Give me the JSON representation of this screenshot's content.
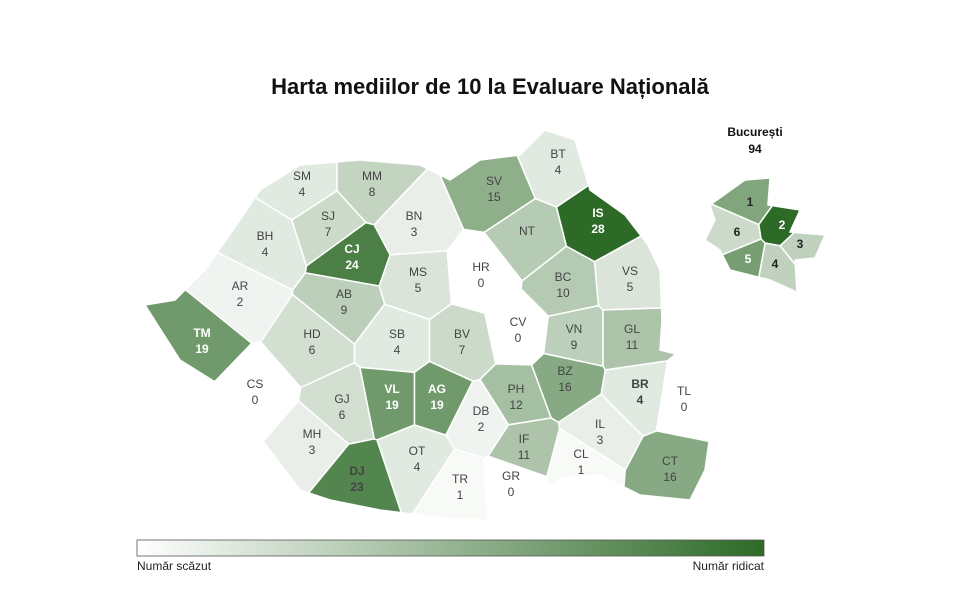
{
  "title": "Harta mediilor de 10 la Evaluare Națională",
  "scale_colors": [
    "#ffffff",
    "#2d6a27"
  ],
  "regions": [
    {
      "code": "SM",
      "value": 4
    },
    {
      "code": "MM",
      "value": 8
    },
    {
      "code": "BT",
      "value": 4
    },
    {
      "code": "SV",
      "value": 15
    },
    {
      "code": "IS",
      "value": 28
    },
    {
      "code": "SJ",
      "value": 7
    },
    {
      "code": "BN",
      "value": 3
    },
    {
      "code": "CJ",
      "value": 24
    },
    {
      "code": "BH",
      "value": 4
    },
    {
      "code": "NT",
      "value": null
    },
    {
      "code": "AR",
      "value": 2
    },
    {
      "code": "MS",
      "value": 5
    },
    {
      "code": "HR",
      "value": 0
    },
    {
      "code": "BC",
      "value": 10
    },
    {
      "code": "VS",
      "value": 5
    },
    {
      "code": "AB",
      "value": 9
    },
    {
      "code": "TM",
      "value": 19
    },
    {
      "code": "HD",
      "value": 6
    },
    {
      "code": "SB",
      "value": 4
    },
    {
      "code": "BV",
      "value": 7
    },
    {
      "code": "CV",
      "value": 0
    },
    {
      "code": "VN",
      "value": 9
    },
    {
      "code": "GL",
      "value": 11
    },
    {
      "code": "CS",
      "value": 0
    },
    {
      "code": "VL",
      "value": 19
    },
    {
      "code": "AG",
      "value": 19
    },
    {
      "code": "PH",
      "value": 12
    },
    {
      "code": "BZ",
      "value": 16
    },
    {
      "code": "BR",
      "value": 4
    },
    {
      "code": "TL",
      "value": 0
    },
    {
      "code": "GJ",
      "value": 6
    },
    {
      "code": "DB",
      "value": 2
    },
    {
      "code": "MH",
      "value": 3
    },
    {
      "code": "IL",
      "value": 3
    },
    {
      "code": "IF",
      "value": 11
    },
    {
      "code": "OT",
      "value": 4
    },
    {
      "code": "DJ",
      "value": 23
    },
    {
      "code": "TR",
      "value": 1
    },
    {
      "code": "GR",
      "value": 0
    },
    {
      "code": "CL",
      "value": 1
    },
    {
      "code": "CT",
      "value": 16
    }
  ],
  "bucharest": {
    "label": "București",
    "value": 94,
    "sectors": [
      "1",
      "2",
      "3",
      "4",
      "5",
      "6"
    ]
  },
  "legend": {
    "low": "Număr scăzut",
    "high": "Număr ridicat"
  }
}
